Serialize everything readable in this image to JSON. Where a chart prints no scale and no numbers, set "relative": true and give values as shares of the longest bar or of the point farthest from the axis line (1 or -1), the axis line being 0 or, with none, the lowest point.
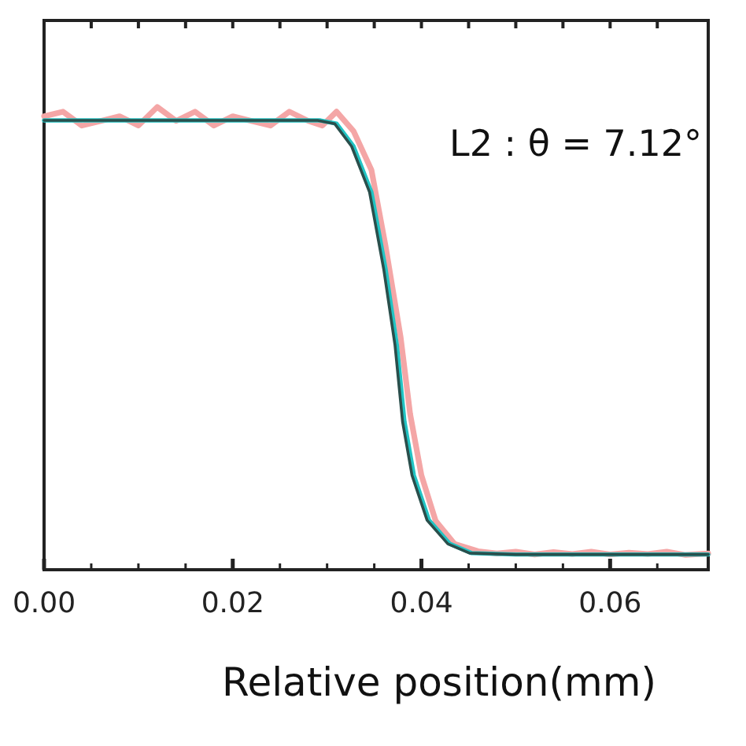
{
  "chart_data": {
    "type": "line",
    "relative": true,
    "xlabel": "Relative position(mm)",
    "xlim": [
      0,
      0.0704
    ],
    "xticks": [
      {
        "value": 0,
        "label": "0.00"
      },
      {
        "value": 0.005,
        "label": null
      },
      0.02,
      {
        "value": 0.025,
        "label": null
      },
      0.04,
      {
        "value": 0.045,
        "label": null
      },
      0.06,
      {
        "value": 0.065,
        "label": null
      },
      {
        "value": 0.01,
        "label": null
      },
      {
        "value": 0.015,
        "label": null
      },
      {
        "value": 0.03,
        "label": null
      },
      {
        "value": 0.035,
        "label": null
      },
      {
        "value": 0.05,
        "label": null
      },
      {
        "value": 0.055,
        "label": null
      }
    ],
    "annotations": [
      "L2 : θ = 7.12°"
    ],
    "grid": false,
    "marker": "none",
    "line_style": "solid",
    "series": [
      {
        "color": "#f4a6a6",
        "x": [
          0,
          0.002,
          0.004,
          0.006,
          0.008,
          0.01,
          0.012,
          0.014,
          0.016,
          0.018,
          0.02,
          0.022,
          0.024,
          0.026,
          0.028,
          0.0295,
          0.031,
          0.0328,
          0.0347,
          0.0362,
          0.0378,
          0.0388,
          0.04,
          0.0415,
          0.0435,
          0.046,
          0.048,
          0.05,
          0.052,
          0.054,
          0.056,
          0.058,
          0.06,
          0.062,
          0.064,
          0.066,
          0.068,
          0.0704
        ],
        "values": [
          0.98,
          0.99,
          0.96,
          0.97,
          0.98,
          0.96,
          1.0,
          0.97,
          0.99,
          0.96,
          0.98,
          0.97,
          0.96,
          0.99,
          0.97,
          0.96,
          0.99,
          0.948,
          0.864,
          0.699,
          0.502,
          0.337,
          0.204,
          0.106,
          0.056,
          0.04,
          0.035,
          0.039,
          0.033,
          0.038,
          0.034,
          0.039,
          0.033,
          0.037,
          0.034,
          0.039,
          0.032,
          0.035
        ]
      },
      {
        "color": "#22c4c4",
        "x": [
          0,
          0.01,
          0.02,
          0.0293,
          0.031,
          0.0328,
          0.0347,
          0.0362,
          0.0374,
          0.0382,
          0.0392,
          0.0408,
          0.043,
          0.0453,
          0.05,
          0.06,
          0.0704
        ],
        "values": [
          0.971,
          0.971,
          0.971,
          0.971,
          0.964,
          0.915,
          0.816,
          0.65,
          0.485,
          0.32,
          0.204,
          0.107,
          0.056,
          0.036,
          0.033,
          0.033,
          0.033
        ]
      },
      {
        "color": "#2a4f4c",
        "x": [
          0,
          0.01,
          0.02,
          0.029,
          0.0308,
          0.0326,
          0.0345,
          0.036,
          0.0372,
          0.038,
          0.039,
          0.0406,
          0.0428,
          0.0451,
          0.05,
          0.06,
          0.0704
        ],
        "values": [
          0.971,
          0.971,
          0.971,
          0.971,
          0.964,
          0.915,
          0.816,
          0.65,
          0.485,
          0.32,
          0.204,
          0.107,
          0.056,
          0.036,
          0.033,
          0.033,
          0.033
        ]
      }
    ]
  }
}
